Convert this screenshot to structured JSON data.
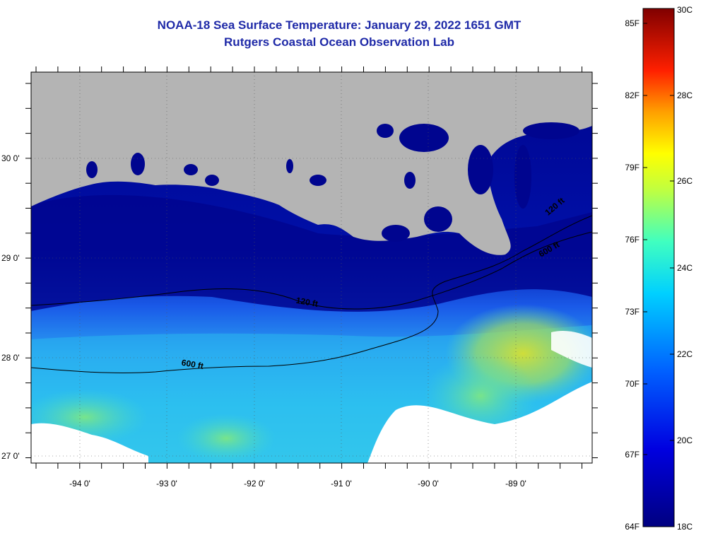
{
  "title_line1": "NOAA-18 Sea Surface Temperature:  January 29, 2022 1651 GMT",
  "title_line2": "Rutgers Coastal Ocean Observation Lab",
  "map": {
    "lon_ticks": [
      "-94 0'",
      "-93 0'",
      "-92 0'",
      "-91 0'",
      "-90 0'",
      "-89 0'"
    ],
    "lat_ticks": [
      "30 0'",
      "29 0'",
      "28 0'",
      "27 0'"
    ],
    "contour_labels": [
      "120 ft",
      "600 ft",
      "120 ft",
      "600 ft"
    ],
    "land_color": "#b4b4b4",
    "cloud_color": "#ffffff"
  },
  "colorbar": {
    "fahrenheit": [
      "85F",
      "82F",
      "79F",
      "76F",
      "73F",
      "70F",
      "67F",
      "64F"
    ],
    "celsius": [
      "30C",
      "28C",
      "26C",
      "24C",
      "22C",
      "20C",
      "18C"
    ],
    "colors": [
      "#000080",
      "#0000ff",
      "#0080ff",
      "#00ffff",
      "#80ff80",
      "#ffff00",
      "#ff8000",
      "#ff0000",
      "#800000"
    ]
  }
}
